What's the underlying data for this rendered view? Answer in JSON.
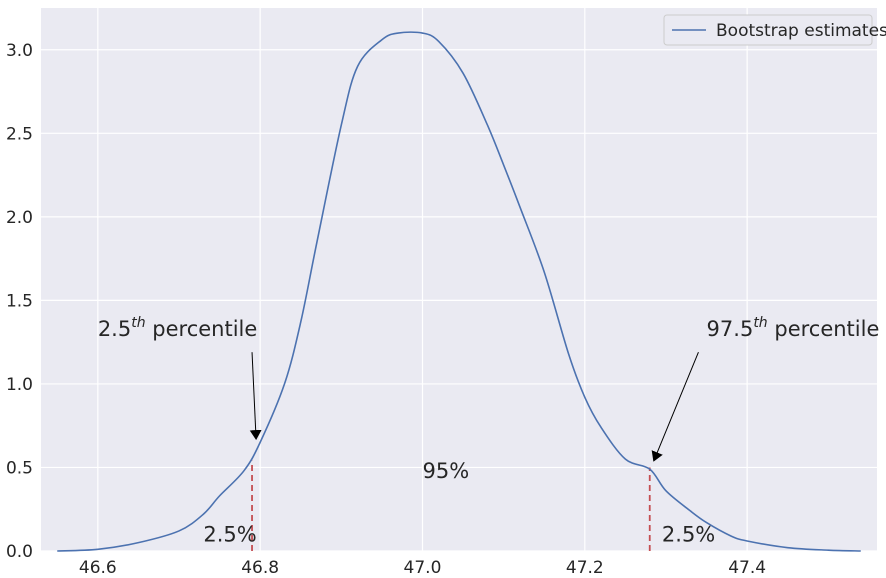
{
  "chart_data": {
    "type": "line",
    "xlim": [
      46.53,
      47.56
    ],
    "ylim": [
      0,
      3.25
    ],
    "x_ticks": [
      46.6,
      46.8,
      47.0,
      47.2,
      47.4
    ],
    "x_tick_labels": [
      "46.6",
      "46.8",
      "47.0",
      "47.2",
      "47.4"
    ],
    "y_ticks": [
      0,
      0.5,
      1.0,
      1.5,
      2.0,
      2.5,
      3.0
    ],
    "y_tick_labels": [
      "0.0",
      "0.5",
      "1.0",
      "1.5",
      "2.0",
      "2.5",
      "3.0"
    ],
    "grid": true,
    "legend_position": "top-right",
    "series": [
      {
        "name": "Bootstrap estimates",
        "color": "#4c72b0",
        "x": [
          46.55,
          46.6,
          46.65,
          46.7,
          46.73,
          46.75,
          46.78,
          46.8,
          46.83,
          46.85,
          46.87,
          46.9,
          46.92,
          46.95,
          46.97,
          47.0,
          47.02,
          47.05,
          47.08,
          47.1,
          47.12,
          47.15,
          47.18,
          47.2,
          47.22,
          47.25,
          47.28,
          47.3,
          47.33,
          47.35,
          47.38,
          47.4,
          47.45,
          47.5,
          47.54
        ],
        "y": [
          0.0,
          0.01,
          0.05,
          0.12,
          0.22,
          0.33,
          0.48,
          0.65,
          1.0,
          1.37,
          1.85,
          2.55,
          2.9,
          3.06,
          3.1,
          3.1,
          3.05,
          2.86,
          2.55,
          2.31,
          2.06,
          1.67,
          1.18,
          0.92,
          0.74,
          0.55,
          0.49,
          0.36,
          0.24,
          0.17,
          0.09,
          0.06,
          0.02,
          0.005,
          0.0
        ]
      }
    ],
    "vlines": [
      {
        "x": 46.79,
        "y_max": 0.54,
        "color": "#c44e52",
        "style": "dashed"
      },
      {
        "x": 47.28,
        "y_max": 0.5,
        "color": "#c44e52",
        "style": "dashed"
      }
    ],
    "annotations": [
      {
        "id": "left_percentile",
        "text": "2.5",
        "sup": "th",
        "suffix": " percentile",
        "text_x": 46.6,
        "text_y": 1.25,
        "arrow_from": [
          46.79,
          1.19
        ],
        "arrow_to": [
          46.795,
          0.67
        ]
      },
      {
        "id": "right_percentile",
        "text": "97.5",
        "sup": "th",
        "suffix": " percentile",
        "text_x": 47.35,
        "text_y": 1.25,
        "arrow_from": [
          47.34,
          1.19
        ],
        "arrow_to": [
          47.285,
          0.54
        ]
      },
      {
        "id": "left_tail",
        "text": "2.5%",
        "x": 46.73,
        "y": 0.1
      },
      {
        "id": "middle",
        "text": "95%",
        "x": 47.0,
        "y": 0.48
      },
      {
        "id": "right_tail",
        "text": "2.5%",
        "x": 47.295,
        "y": 0.1
      }
    ],
    "colors": {
      "plot_background": "#eaeaf2",
      "grid": "#ffffff",
      "text": "#262626"
    }
  }
}
